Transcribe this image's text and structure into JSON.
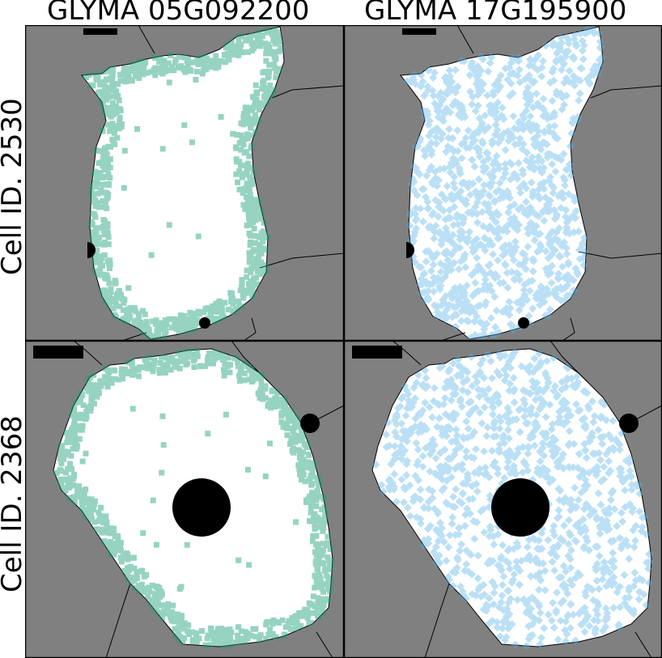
{
  "columns": [
    {
      "title": "GLYMA 05G092200",
      "color": "#1a9e77",
      "marker": "square"
    },
    {
      "title": "GLYMA 17G195900",
      "color": "#56b4e9",
      "marker": "diamond"
    }
  ],
  "rows": [
    {
      "label": "Cell ID. 2530"
    },
    {
      "label": "Cell ID. 2368"
    }
  ],
  "colors": {
    "background": "#808080",
    "cell": "#ffffff",
    "nucleus": "#000000",
    "frame": "#000000"
  },
  "pattern_notes": {
    "col0": "transcripts concentrated at cell periphery",
    "col1": "transcripts distributed throughout cell"
  }
}
